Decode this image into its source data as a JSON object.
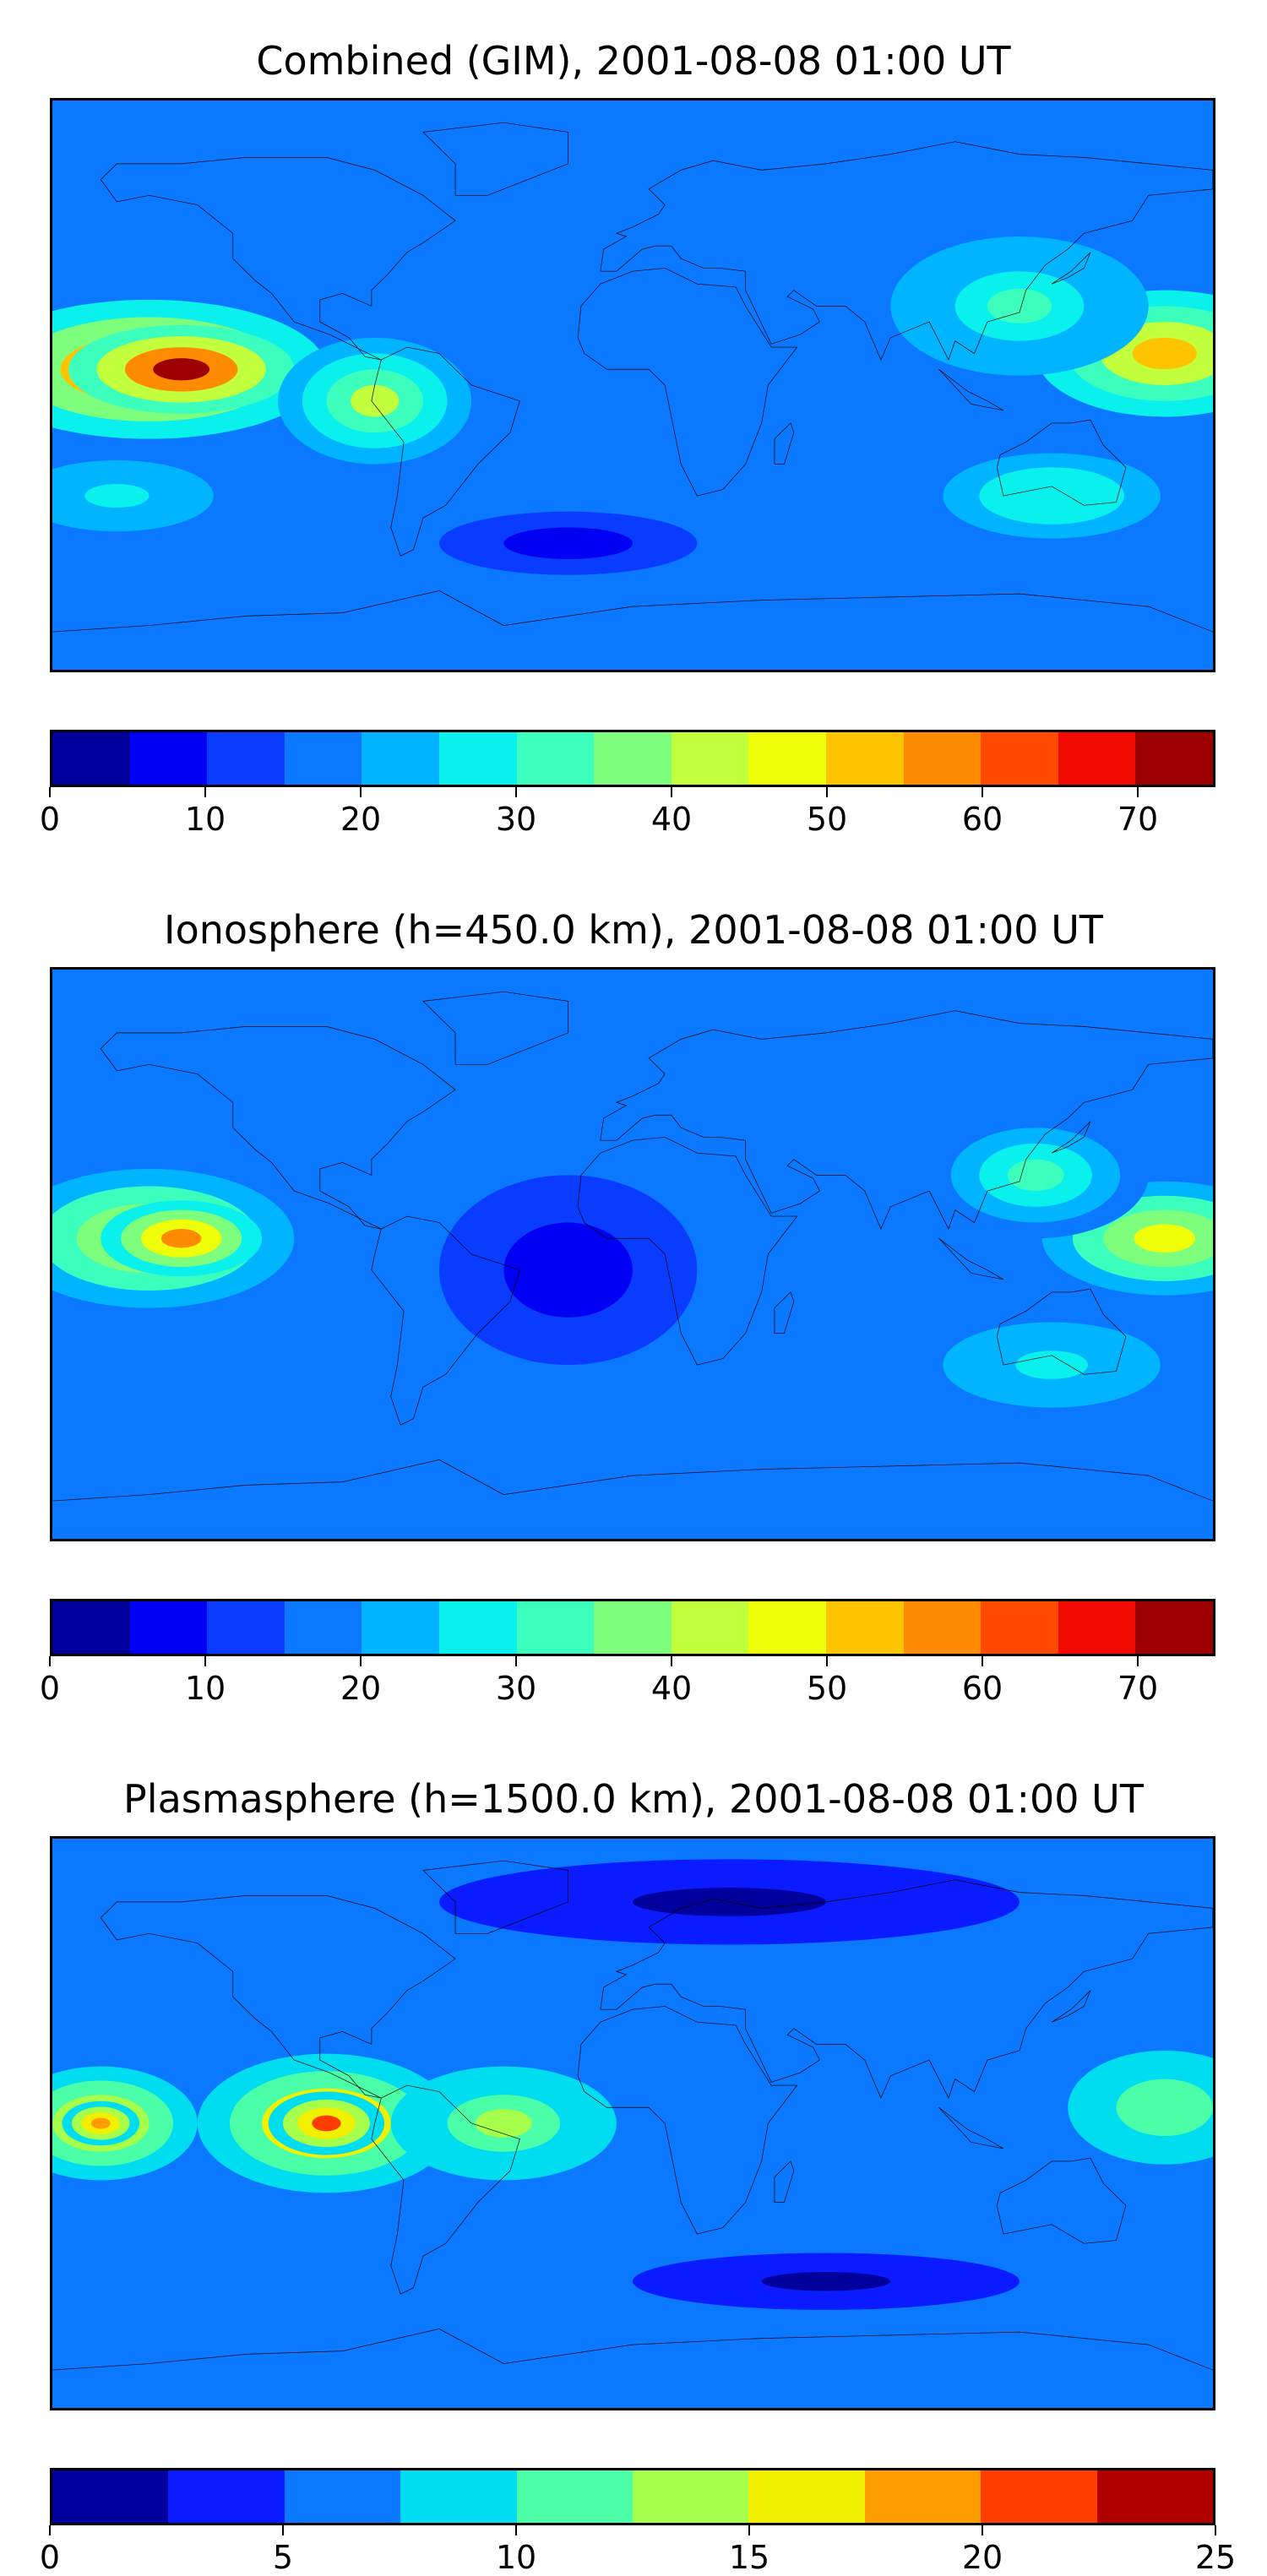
{
  "chart_data": [
    {
      "type": "heatmap",
      "title": "Combined (GIM), 2001-08-08 01:00 UT",
      "colorbar": {
        "levels": [
          0,
          5,
          10,
          15,
          20,
          25,
          30,
          35,
          40,
          45,
          50,
          55,
          60,
          65,
          70,
          75
        ],
        "ticks": [
          0,
          10,
          20,
          30,
          40,
          50,
          60,
          70
        ],
        "colors": [
          "#00009c",
          "#0000f2",
          "#0a3cff",
          "#0a78ff",
          "#00b4ff",
          "#0af0ec",
          "#3cffbe",
          "#7dff7d",
          "#c2ff3c",
          "#efff0a",
          "#ffc400",
          "#ff8c00",
          "#ff4a00",
          "#f20a00",
          "#9c0000"
        ]
      },
      "blobs": [
        {
          "lon": -150,
          "lat": 5,
          "rx": 55,
          "ry": 22,
          "value": 62
        },
        {
          "lon": -140,
          "lat": 5,
          "rx": 35,
          "ry": 14,
          "value": 70
        },
        {
          "lon": -80,
          "lat": -5,
          "rx": 30,
          "ry": 20,
          "value": 40
        },
        {
          "lon": 165,
          "lat": 10,
          "rx": 40,
          "ry": 20,
          "value": 50
        },
        {
          "lon": 120,
          "lat": 25,
          "rx": 40,
          "ry": 22,
          "value": 30
        },
        {
          "lon": 130,
          "lat": -35,
          "rx": 45,
          "ry": 18,
          "value": 28
        },
        {
          "lon": -160,
          "lat": -35,
          "rx": 40,
          "ry": 15,
          "value": 27
        },
        {
          "lon": -20,
          "lat": -50,
          "rx": 40,
          "ry": 10,
          "value": 7
        }
      ],
      "background_value": 17
    },
    {
      "type": "heatmap",
      "title": "Ionosphere  (h=450.0 km), 2001-08-08 01:00 UT",
      "colorbar": {
        "levels": [
          0,
          5,
          10,
          15,
          20,
          25,
          30,
          35,
          40,
          45,
          50,
          55,
          60,
          65,
          70,
          75
        ],
        "ticks": [
          0,
          10,
          20,
          30,
          40,
          50,
          60,
          70
        ],
        "colors": [
          "#00009c",
          "#0000f2",
          "#0a3cff",
          "#0a78ff",
          "#00b4ff",
          "#0af0ec",
          "#3cffbe",
          "#7dff7d",
          "#c2ff3c",
          "#efff0a",
          "#ffc400",
          "#ff8c00",
          "#ff4a00",
          "#f20a00",
          "#9c0000"
        ]
      },
      "blobs": [
        {
          "lon": -150,
          "lat": 5,
          "rx": 45,
          "ry": 22,
          "value": 48
        },
        {
          "lon": -140,
          "lat": 5,
          "rx": 25,
          "ry": 12,
          "value": 55
        },
        {
          "lon": 165,
          "lat": 5,
          "rx": 38,
          "ry": 18,
          "value": 47
        },
        {
          "lon": 125,
          "lat": 25,
          "rx": 35,
          "ry": 20,
          "value": 30
        },
        {
          "lon": 130,
          "lat": -35,
          "rx": 45,
          "ry": 18,
          "value": 28
        },
        {
          "lon": -20,
          "lat": -5,
          "rx": 40,
          "ry": 30,
          "value": 7
        }
      ],
      "background_value": 15
    },
    {
      "type": "heatmap",
      "title": "Plasmasphere (h=1500.0 km), 2001-08-08 01:00 UT",
      "colorbar": {
        "levels": [
          0,
          2.5,
          5,
          7.5,
          10,
          12.5,
          15,
          17.5,
          20,
          22.5,
          25
        ],
        "ticks": [
          0,
          5,
          10,
          15,
          20,
          25
        ],
        "colors": [
          "#00009c",
          "#0a1cff",
          "#0a78ff",
          "#00dcf0",
          "#4affa8",
          "#a6ff4a",
          "#f0f000",
          "#ff9c00",
          "#ff3c00",
          "#b00000"
        ]
      },
      "blobs": [
        {
          "lon": -95,
          "lat": 0,
          "rx": 40,
          "ry": 22,
          "value": 18
        },
        {
          "lon": -95,
          "lat": 0,
          "rx": 18,
          "ry": 10,
          "value": 21
        },
        {
          "lon": -165,
          "lat": 0,
          "rx": 30,
          "ry": 18,
          "value": 15
        },
        {
          "lon": -165,
          "lat": 0,
          "rx": 12,
          "ry": 7,
          "value": 19
        },
        {
          "lon": -40,
          "lat": 0,
          "rx": 35,
          "ry": 18,
          "value": 13
        },
        {
          "lon": 165,
          "lat": 5,
          "rx": 30,
          "ry": 18,
          "value": 12
        },
        {
          "lon": 30,
          "lat": 70,
          "rx": 120,
          "ry": 18,
          "value": 2
        },
        {
          "lon": 60,
          "lat": -50,
          "rx": 80,
          "ry": 12,
          "value": 2
        }
      ],
      "background_value": 6
    }
  ]
}
